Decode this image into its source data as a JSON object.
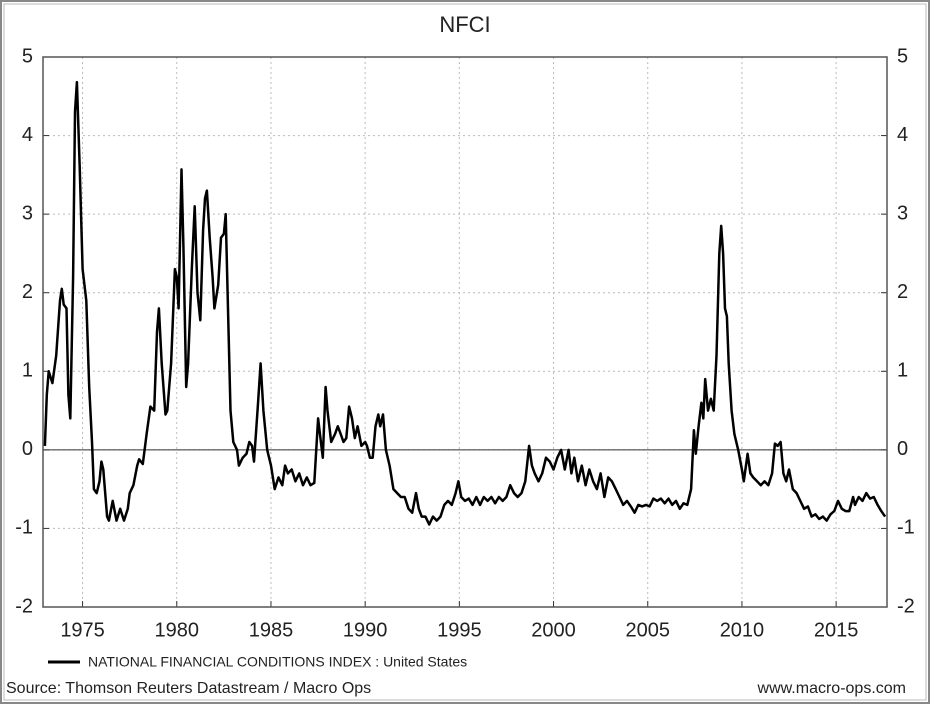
{
  "chart_data": {
    "type": "line",
    "title": "NFCI",
    "source": "Source: Thomson Reuters Datastream / Macro Ops",
    "credit": "www.macro-ops.com",
    "xlim": [
      1972.9,
      2017.7
    ],
    "xticks": [
      1975,
      1980,
      1985,
      1990,
      1995,
      2000,
      2005,
      2010,
      2015
    ],
    "ylim": [
      -2,
      5
    ],
    "yticks": [
      -2,
      -1,
      0,
      1,
      2,
      3,
      4,
      5
    ],
    "grid": true,
    "series": [
      {
        "name": "NATIONAL FINANCIAL CONDITIONS INDEX : United States",
        "color": "#000000",
        "x": [
          1973.0,
          1973.1,
          1973.2,
          1973.4,
          1973.6,
          1973.8,
          1973.9,
          1974.0,
          1974.15,
          1974.25,
          1974.35,
          1974.5,
          1974.6,
          1974.7,
          1974.85,
          1975.0,
          1975.2,
          1975.35,
          1975.5,
          1975.6,
          1975.75,
          1975.9,
          1976.0,
          1976.1,
          1976.2,
          1976.3,
          1976.4,
          1976.6,
          1976.8,
          1977.0,
          1977.2,
          1977.4,
          1977.5,
          1977.7,
          1977.9,
          1978.0,
          1978.2,
          1978.4,
          1978.6,
          1978.8,
          1978.95,
          1979.05,
          1979.2,
          1979.4,
          1979.5,
          1979.7,
          1979.9,
          1980.0,
          1980.1,
          1980.25,
          1980.35,
          1980.5,
          1980.6,
          1980.8,
          1980.95,
          1981.1,
          1981.25,
          1981.4,
          1981.5,
          1981.6,
          1981.75,
          1981.9,
          1982.0,
          1982.2,
          1982.35,
          1982.5,
          1982.6,
          1982.7,
          1982.85,
          1983.0,
          1983.2,
          1983.3,
          1983.5,
          1983.7,
          1983.85,
          1984.0,
          1984.1,
          1984.3,
          1984.45,
          1984.6,
          1984.8,
          1985.0,
          1985.2,
          1985.4,
          1985.6,
          1985.75,
          1985.9,
          1986.1,
          1986.3,
          1986.5,
          1986.7,
          1986.9,
          1987.1,
          1987.3,
          1987.5,
          1987.65,
          1987.75,
          1987.9,
          1988.0,
          1988.2,
          1988.4,
          1988.55,
          1988.7,
          1988.85,
          1989.0,
          1989.15,
          1989.3,
          1989.45,
          1989.6,
          1989.8,
          1990.0,
          1990.1,
          1990.25,
          1990.4,
          1990.55,
          1990.7,
          1990.8,
          1990.95,
          1991.1,
          1991.3,
          1991.5,
          1991.7,
          1991.9,
          1992.1,
          1992.3,
          1992.5,
          1992.7,
          1992.85,
          1993.0,
          1993.2,
          1993.4,
          1993.6,
          1993.8,
          1994.0,
          1994.2,
          1994.4,
          1994.6,
          1994.8,
          1994.95,
          1995.1,
          1995.3,
          1995.5,
          1995.7,
          1995.9,
          1996.1,
          1996.3,
          1996.5,
          1996.7,
          1996.9,
          1997.1,
          1997.3,
          1997.5,
          1997.7,
          1997.9,
          1998.1,
          1998.3,
          1998.5,
          1998.7,
          1998.85,
          1999.0,
          1999.2,
          1999.4,
          1999.6,
          1999.8,
          2000.0,
          2000.2,
          2000.4,
          2000.6,
          2000.8,
          2000.95,
          2001.1,
          2001.3,
          2001.5,
          2001.7,
          2001.9,
          2002.1,
          2002.3,
          2002.5,
          2002.7,
          2002.9,
          2003.1,
          2003.3,
          2003.5,
          2003.7,
          2003.9,
          2004.1,
          2004.3,
          2004.5,
          2004.7,
          2004.9,
          2005.1,
          2005.3,
          2005.5,
          2005.7,
          2005.9,
          2006.1,
          2006.3,
          2006.5,
          2006.7,
          2006.9,
          2007.1,
          2007.3,
          2007.45,
          2007.55,
          2007.7,
          2007.85,
          2007.95,
          2008.05,
          2008.2,
          2008.35,
          2008.5,
          2008.65,
          2008.8,
          2008.9,
          2009.0,
          2009.1,
          2009.2,
          2009.3,
          2009.45,
          2009.6,
          2009.8,
          2010.0,
          2010.1,
          2010.3,
          2010.45,
          2010.6,
          2010.8,
          2011.0,
          2011.2,
          2011.4,
          2011.6,
          2011.75,
          2011.9,
          2012.05,
          2012.2,
          2012.35,
          2012.5,
          2012.7,
          2012.9,
          2013.1,
          2013.3,
          2013.5,
          2013.7,
          2013.9,
          2014.1,
          2014.3,
          2014.5,
          2014.7,
          2014.9,
          2015.1,
          2015.3,
          2015.5,
          2015.7,
          2015.9,
          2016.0,
          2016.2,
          2016.4,
          2016.6,
          2016.8,
          2017.0,
          2017.2,
          2017.4,
          2017.6
        ],
        "values": [
          0.05,
          0.7,
          1.0,
          0.85,
          1.2,
          1.9,
          2.05,
          1.85,
          1.8,
          0.7,
          0.4,
          2.2,
          4.3,
          4.68,
          3.6,
          2.3,
          1.9,
          0.8,
          0.1,
          -0.5,
          -0.55,
          -0.4,
          -0.15,
          -0.25,
          -0.55,
          -0.85,
          -0.9,
          -0.65,
          -0.9,
          -0.75,
          -0.9,
          -0.75,
          -0.55,
          -0.45,
          -0.2,
          -0.12,
          -0.18,
          0.2,
          0.55,
          0.5,
          1.5,
          1.8,
          1.1,
          0.45,
          0.5,
          1.1,
          2.3,
          2.2,
          1.8,
          3.57,
          2.6,
          0.8,
          1.1,
          2.3,
          3.1,
          2.0,
          1.65,
          2.8,
          3.2,
          3.3,
          2.7,
          2.2,
          1.8,
          2.1,
          2.7,
          2.75,
          3.0,
          2.0,
          0.5,
          0.1,
          0.0,
          -0.2,
          -0.1,
          -0.05,
          0.1,
          0.05,
          -0.15,
          0.55,
          1.1,
          0.5,
          0.0,
          -0.2,
          -0.5,
          -0.35,
          -0.45,
          -0.2,
          -0.3,
          -0.25,
          -0.4,
          -0.3,
          -0.45,
          -0.35,
          -0.45,
          -0.42,
          0.4,
          0.1,
          -0.1,
          0.8,
          0.5,
          0.1,
          0.2,
          0.3,
          0.2,
          0.1,
          0.15,
          0.55,
          0.4,
          0.15,
          0.3,
          0.05,
          0.1,
          0.05,
          -0.1,
          -0.1,
          0.3,
          0.45,
          0.3,
          0.45,
          0.0,
          -0.2,
          -0.5,
          -0.55,
          -0.6,
          -0.6,
          -0.75,
          -0.8,
          -0.55,
          -0.75,
          -0.85,
          -0.85,
          -0.95,
          -0.85,
          -0.9,
          -0.85,
          -0.7,
          -0.65,
          -0.7,
          -0.55,
          -0.4,
          -0.6,
          -0.65,
          -0.62,
          -0.7,
          -0.6,
          -0.7,
          -0.6,
          -0.65,
          -0.6,
          -0.68,
          -0.6,
          -0.65,
          -0.6,
          -0.45,
          -0.55,
          -0.6,
          -0.55,
          -0.4,
          0.05,
          -0.2,
          -0.3,
          -0.4,
          -0.3,
          -0.1,
          -0.15,
          -0.25,
          -0.1,
          0.0,
          -0.25,
          0.0,
          -0.3,
          -0.1,
          -0.4,
          -0.2,
          -0.45,
          -0.25,
          -0.4,
          -0.5,
          -0.3,
          -0.6,
          -0.35,
          -0.4,
          -0.5,
          -0.6,
          -0.7,
          -0.65,
          -0.72,
          -0.8,
          -0.7,
          -0.72,
          -0.7,
          -0.72,
          -0.62,
          -0.65,
          -0.62,
          -0.68,
          -0.62,
          -0.7,
          -0.65,
          -0.75,
          -0.68,
          -0.7,
          -0.5,
          0.25,
          -0.05,
          0.3,
          0.6,
          0.4,
          0.9,
          0.5,
          0.65,
          0.5,
          1.2,
          2.5,
          2.85,
          2.5,
          1.8,
          1.7,
          1.1,
          0.5,
          0.2,
          0.0,
          -0.25,
          -0.4,
          -0.05,
          -0.3,
          -0.35,
          -0.4,
          -0.45,
          -0.4,
          -0.45,
          -0.3,
          0.08,
          0.05,
          0.1,
          -0.3,
          -0.4,
          -0.25,
          -0.5,
          -0.55,
          -0.65,
          -0.75,
          -0.72,
          -0.85,
          -0.82,
          -0.88,
          -0.85,
          -0.9,
          -0.82,
          -0.78,
          -0.65,
          -0.75,
          -0.78,
          -0.78,
          -0.6,
          -0.7,
          -0.6,
          -0.65,
          -0.55,
          -0.62,
          -0.6,
          -0.7,
          -0.78,
          -0.85
        ]
      }
    ]
  }
}
